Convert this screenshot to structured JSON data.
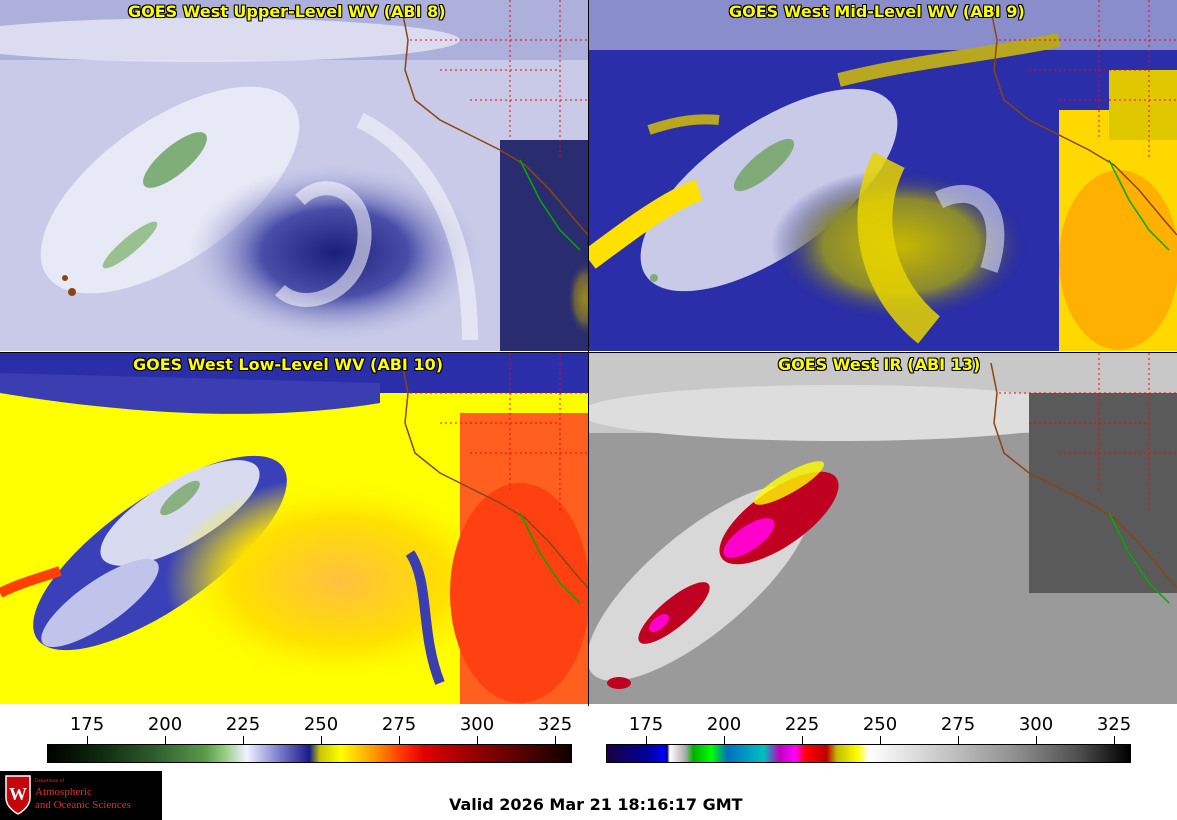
{
  "panels": [
    {
      "title": "GOES West Upper-Level WV (ABI 8)"
    },
    {
      "title": "GOES West Mid-Level WV (ABI 9)"
    },
    {
      "title": "GOES West Low-Level WV (ABI 10)"
    },
    {
      "title": "GOES West IR (ABI 13)"
    }
  ],
  "colorbar_left": {
    "ticks": [
      "175",
      "200",
      "225",
      "250",
      "275",
      "300",
      "325"
    ]
  },
  "colorbar_right": {
    "ticks": [
      "175",
      "200",
      "225",
      "250",
      "275",
      "300",
      "325"
    ]
  },
  "logo": {
    "line1": "Department of",
    "line2": "Atmospheric",
    "line3": "and Oceanic Sciences",
    "crest_letter": "W"
  },
  "footer": {
    "valid": "Valid 2026 Mar 21 18:16:17 GMT"
  },
  "colors": {
    "title": "#ffff00",
    "coastline": "#8b4513",
    "state_lines": "#ff0000",
    "mexico_coast": "#00aa00"
  }
}
